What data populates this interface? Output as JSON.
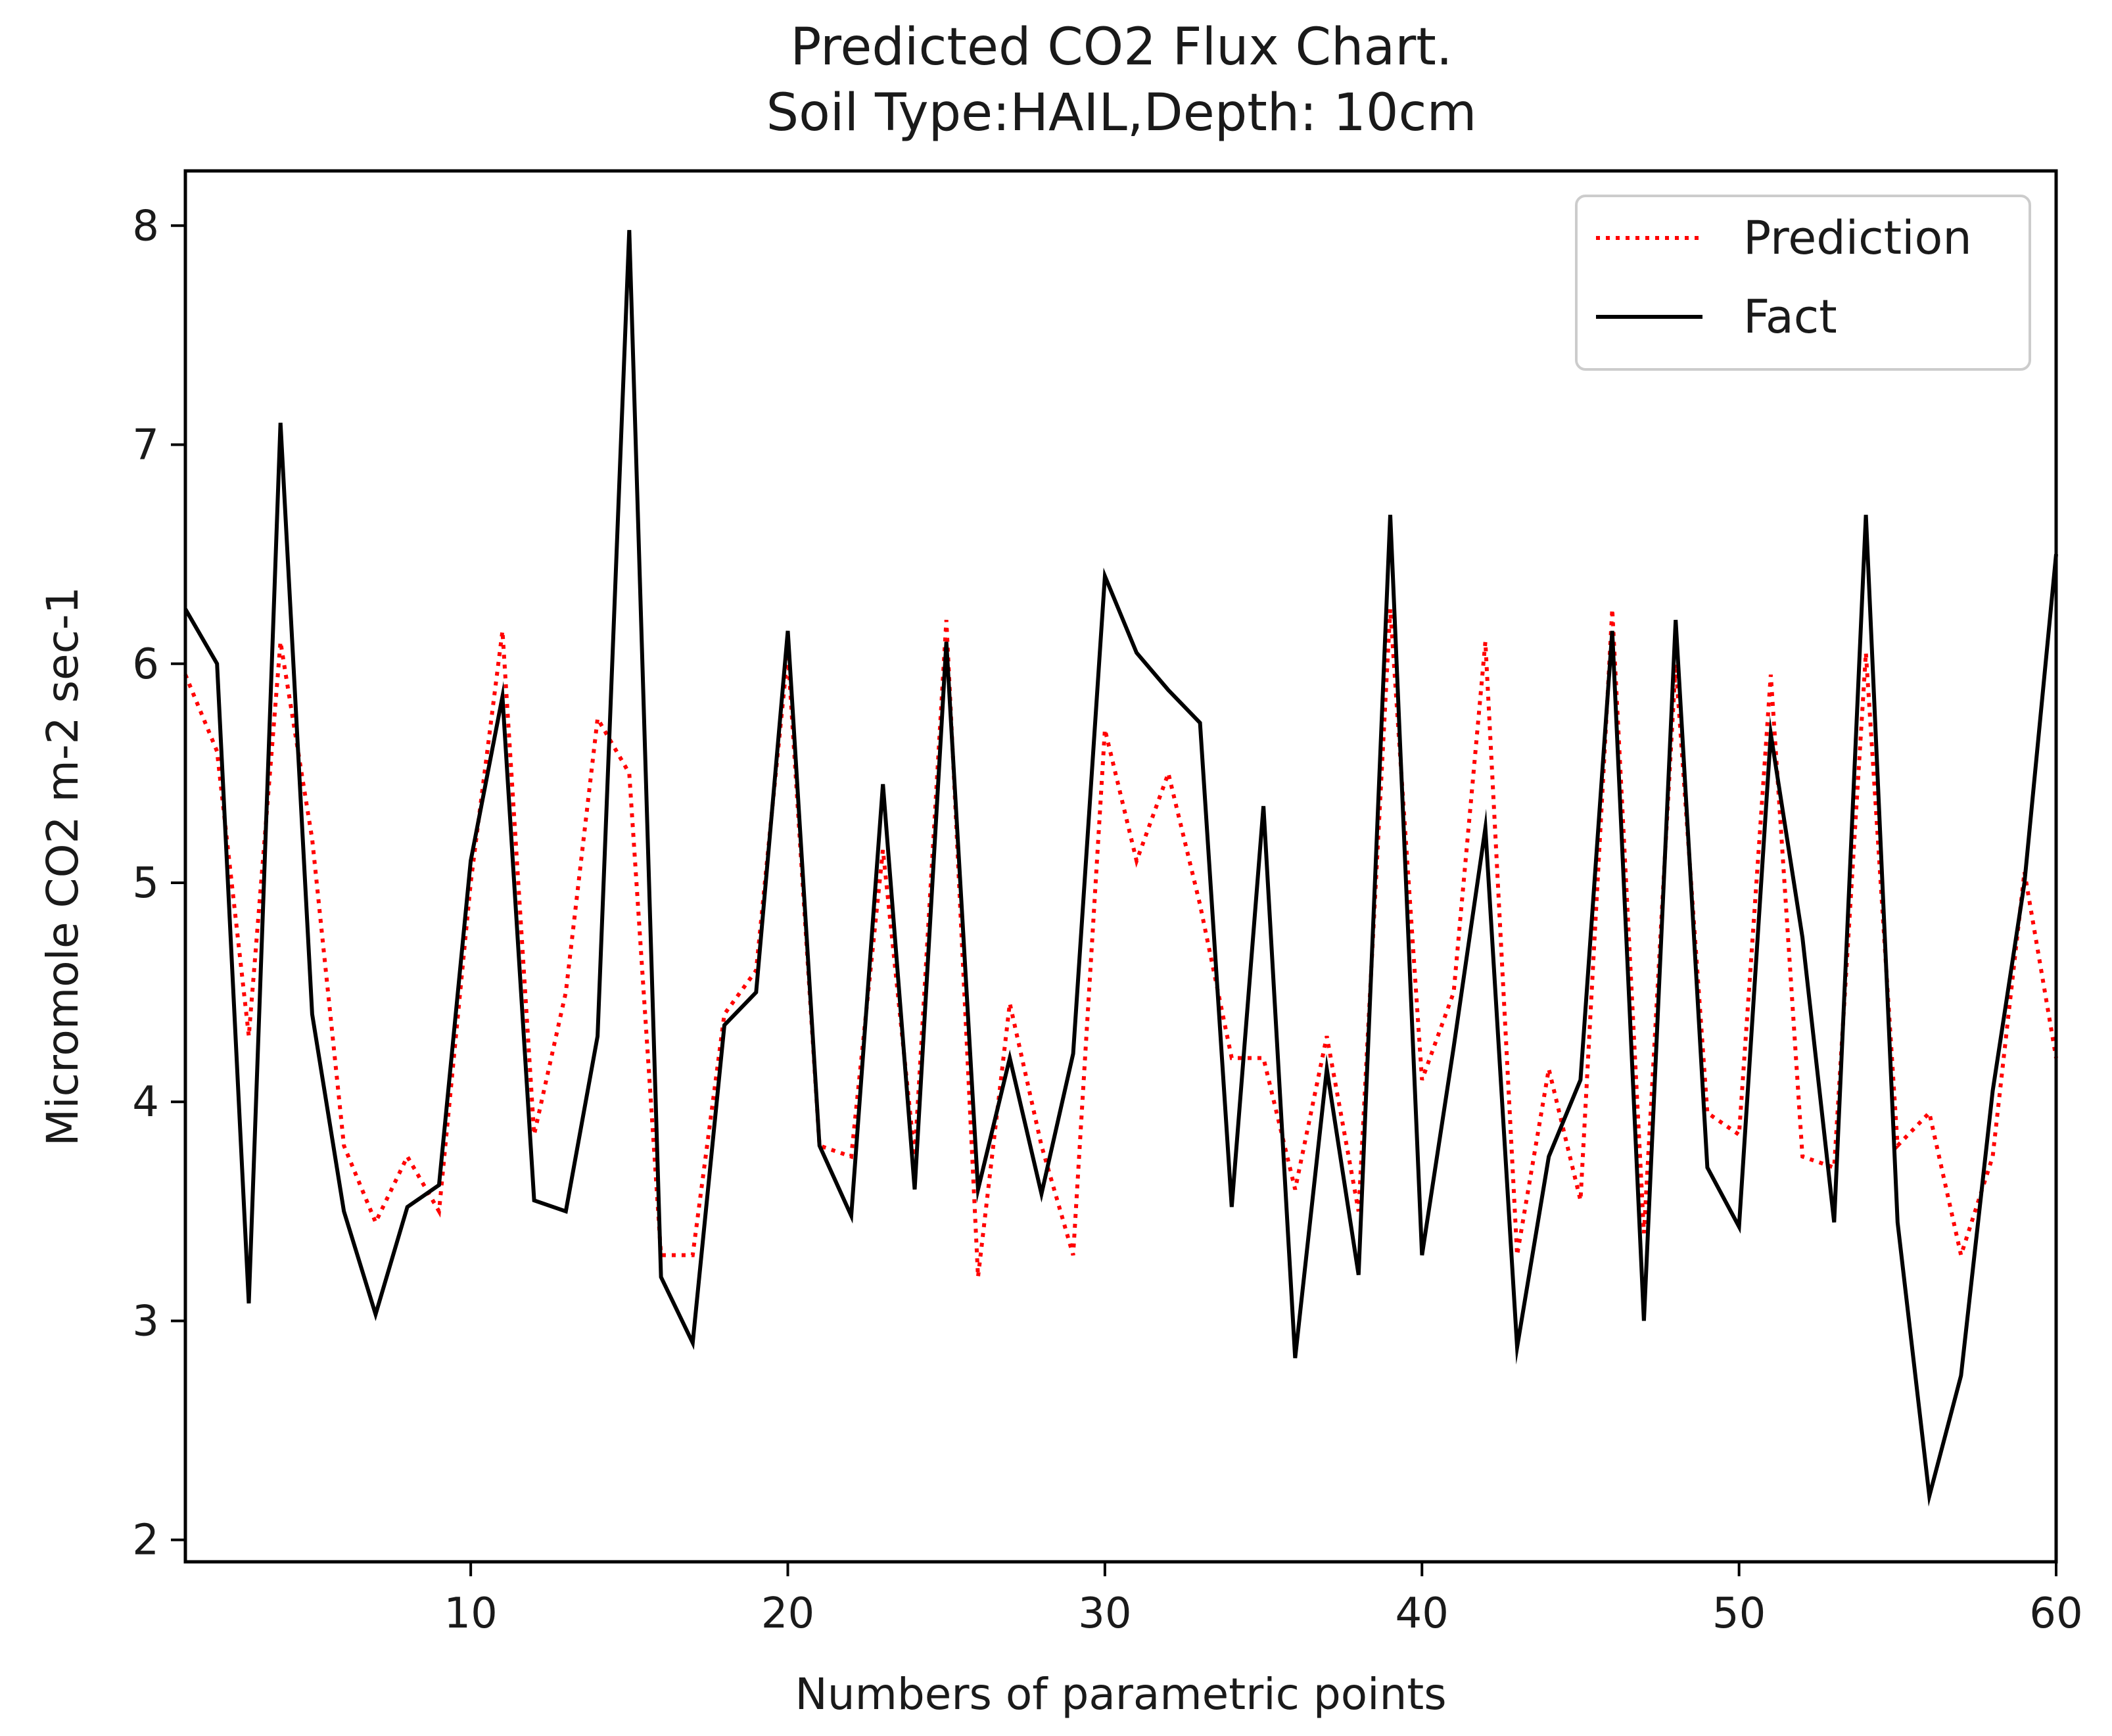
{
  "chart_data": {
    "type": "line",
    "title": "Predicted CO2 Flux Chart.",
    "subtitle": "Soil Type:HAIL,Depth: 10cm",
    "xlabel": "Numbers of parametric points",
    "ylabel": "Micromole CO2 m-2 sec-1",
    "xlim": [
      1,
      60
    ],
    "ylim": [
      1.9,
      8.25
    ],
    "xticks": [
      10,
      20,
      30,
      40,
      50,
      60
    ],
    "yticks": [
      2,
      3,
      4,
      5,
      6,
      7,
      8
    ],
    "grid": false,
    "legend_position": "top-right",
    "x": [
      1,
      2,
      3,
      4,
      5,
      6,
      7,
      8,
      9,
      10,
      11,
      12,
      13,
      14,
      15,
      16,
      17,
      18,
      19,
      20,
      21,
      22,
      23,
      24,
      25,
      26,
      27,
      28,
      29,
      30,
      31,
      32,
      33,
      34,
      35,
      36,
      37,
      38,
      39,
      40,
      41,
      42,
      43,
      44,
      45,
      46,
      47,
      48,
      49,
      50,
      51,
      52,
      53,
      54,
      55,
      56,
      57,
      58,
      59,
      60
    ],
    "series": [
      {
        "name": "Prediction",
        "color": "#ff0000",
        "style": "dotted",
        "values": [
          5.95,
          5.6,
          4.3,
          6.1,
          5.2,
          3.8,
          3.45,
          3.75,
          3.5,
          5.0,
          6.15,
          3.85,
          4.5,
          5.75,
          5.5,
          3.3,
          3.3,
          4.4,
          4.6,
          6.05,
          3.8,
          3.75,
          5.15,
          3.75,
          6.2,
          3.2,
          4.45,
          3.8,
          3.3,
          5.7,
          5.1,
          5.5,
          4.9,
          4.2,
          4.2,
          3.6,
          4.3,
          3.5,
          6.25,
          4.1,
          4.5,
          6.1,
          3.3,
          4.15,
          3.55,
          6.25,
          3.4,
          6.0,
          3.95,
          3.85,
          5.95,
          3.75,
          3.7,
          6.05,
          3.8,
          3.95,
          3.3,
          3.75,
          5.05,
          4.2
        ]
      },
      {
        "name": "Fact",
        "color": "#000000",
        "style": "solid",
        "values": [
          6.25,
          6.0,
          3.08,
          7.1,
          4.4,
          3.5,
          3.03,
          3.52,
          3.62,
          5.1,
          5.85,
          3.55,
          3.5,
          4.3,
          7.98,
          3.2,
          2.9,
          4.35,
          4.5,
          6.15,
          3.8,
          3.48,
          5.45,
          3.6,
          6.1,
          3.6,
          4.2,
          3.58,
          4.22,
          6.4,
          6.05,
          5.88,
          5.73,
          3.52,
          5.35,
          2.83,
          4.15,
          3.21,
          6.68,
          3.3,
          4.25,
          5.25,
          2.88,
          3.75,
          4.1,
          6.15,
          3.0,
          6.2,
          3.7,
          3.43,
          5.68,
          4.75,
          3.45,
          6.68,
          3.45,
          2.2,
          2.75,
          4.05,
          5.0,
          6.5
        ]
      }
    ]
  }
}
